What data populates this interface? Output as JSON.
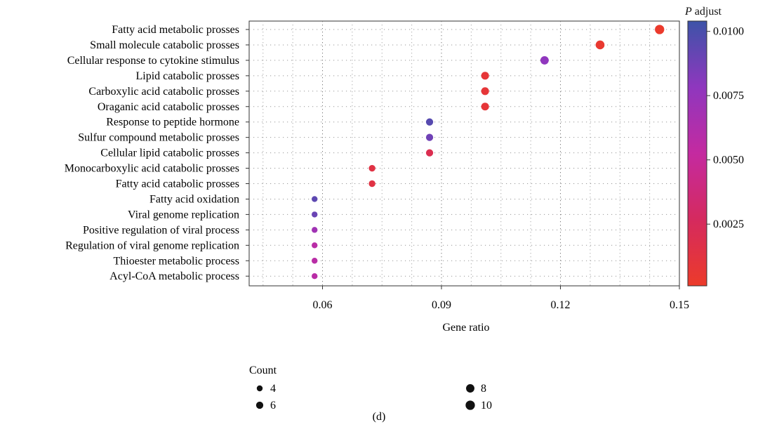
{
  "chart_data": {
    "type": "scatter",
    "xlabel": "Gene ratio",
    "caption": "(d)",
    "xlim": [
      0.0415,
      0.15
    ],
    "xticks": [
      0.06,
      0.09,
      0.12,
      0.15
    ],
    "xtick_labels": [
      "0.06",
      "0.09",
      "0.12",
      "0.15"
    ],
    "grid": true,
    "categories": [
      "Fatty acid metabolic prosses",
      "Small molecule catabolic prosses",
      "Cellular response to cytokine stimulus",
      "Lipid catabolic prosses",
      "Carboxylic acid catabolic prosses",
      "Oraganic acid catabolic prosses",
      "Response to peptide hormone",
      "Sulfur compound metabolic prosses",
      "Cellular lipid catabolic prosses",
      "Monocarboxylic acid catabolic prosses",
      "Fatty acid catabolic prosses",
      "Fatty acid oxidation",
      "Viral genome replication",
      "Positive regulation of viral process",
      "Regulation of viral genome replication",
      "Thioester metabolic process",
      "Acyl-CoA metabolic process"
    ],
    "points": [
      {
        "x": 0.145,
        "count": 10,
        "p_adjust": 0.0002
      },
      {
        "x": 0.13,
        "count": 9,
        "p_adjust": 0.0004
      },
      {
        "x": 0.116,
        "count": 8,
        "p_adjust": 0.0078
      },
      {
        "x": 0.101,
        "count": 7,
        "p_adjust": 0.0008
      },
      {
        "x": 0.101,
        "count": 7,
        "p_adjust": 0.0008
      },
      {
        "x": 0.101,
        "count": 7,
        "p_adjust": 0.0008
      },
      {
        "x": 0.087,
        "count": 6,
        "p_adjust": 0.0096
      },
      {
        "x": 0.087,
        "count": 6,
        "p_adjust": 0.0088
      },
      {
        "x": 0.087,
        "count": 6,
        "p_adjust": 0.002
      },
      {
        "x": 0.0725,
        "count": 5,
        "p_adjust": 0.0014
      },
      {
        "x": 0.0725,
        "count": 5,
        "p_adjust": 0.0014
      },
      {
        "x": 0.058,
        "count": 4,
        "p_adjust": 0.0094
      },
      {
        "x": 0.058,
        "count": 4,
        "p_adjust": 0.009
      },
      {
        "x": 0.058,
        "count": 4,
        "p_adjust": 0.007
      },
      {
        "x": 0.058,
        "count": 4,
        "p_adjust": 0.0058
      },
      {
        "x": 0.058,
        "count": 4,
        "p_adjust": 0.0058
      },
      {
        "x": 0.058,
        "count": 4,
        "p_adjust": 0.0058
      }
    ],
    "color_legend": {
      "title_italic": "P",
      "title_rest": " adjust",
      "range": [
        0.0001,
        0.0104
      ],
      "ticks": [
        0.0025,
        0.005,
        0.0075,
        0.01
      ],
      "tick_labels": [
        "0.0025",
        "0.0050",
        "0.0075",
        "0.0100"
      ],
      "colors": [
        "#ec3b2a",
        "#d52a5e",
        "#c42aa0",
        "#8f37be",
        "#3d53a8"
      ]
    },
    "size_legend": {
      "title": "Count",
      "entries": [
        {
          "label": "4",
          "count": 4
        },
        {
          "label": "6",
          "count": 6
        },
        {
          "label": "8",
          "count": 8
        },
        {
          "label": "10",
          "count": 10
        }
      ]
    }
  }
}
